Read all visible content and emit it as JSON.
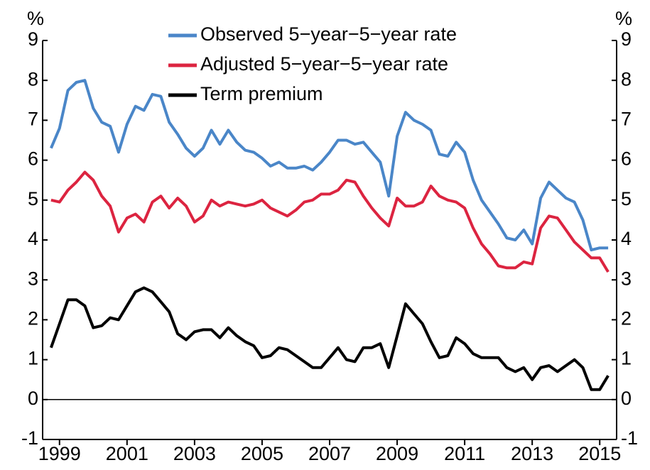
{
  "chart_data": {
    "type": "line",
    "y_label": "%",
    "y2_label": "%",
    "x": [
      1998.75,
      1999,
      1999.25,
      1999.5,
      1999.75,
      2000,
      2000.25,
      2000.5,
      2000.75,
      2001,
      2001.25,
      2001.5,
      2001.75,
      2002,
      2002.25,
      2002.5,
      2002.75,
      2003,
      2003.25,
      2003.5,
      2003.75,
      2004,
      2004.25,
      2004.5,
      2004.75,
      2005,
      2005.25,
      2005.5,
      2005.75,
      2006,
      2006.25,
      2006.5,
      2006.75,
      2007,
      2007.25,
      2007.5,
      2007.75,
      2008,
      2008.25,
      2008.5,
      2008.75,
      2009,
      2009.25,
      2009.5,
      2009.75,
      2010,
      2010.25,
      2010.5,
      2010.75,
      2011,
      2011.25,
      2011.5,
      2011.75,
      2012,
      2012.25,
      2012.5,
      2012.75,
      2013,
      2013.25,
      2013.5,
      2013.75,
      2014,
      2014.25,
      2014.5,
      2014.75,
      2015,
      2015.25
    ],
    "series": [
      {
        "name": "Observed 5−year−5−year rate",
        "color": "#4a86c8",
        "values": [
          6.3,
          6.8,
          7.75,
          7.95,
          8.0,
          7.3,
          6.95,
          6.85,
          6.2,
          6.9,
          7.35,
          7.25,
          7.65,
          7.6,
          6.95,
          6.65,
          6.3,
          6.1,
          6.3,
          6.75,
          6.4,
          6.75,
          6.45,
          6.25,
          6.2,
          6.05,
          5.85,
          5.95,
          5.8,
          5.8,
          5.85,
          5.75,
          5.95,
          6.2,
          6.5,
          6.5,
          6.4,
          6.45,
          6.2,
          5.95,
          5.1,
          6.6,
          7.2,
          7.0,
          6.9,
          6.75,
          6.15,
          6.1,
          6.45,
          6.2,
          5.5,
          5.0,
          4.7,
          4.4,
          4.05,
          4.0,
          4.25,
          3.9,
          5.05,
          5.45,
          5.25,
          5.05,
          4.95,
          4.5,
          3.75,
          3.8,
          3.8
        ]
      },
      {
        "name": "Adjusted 5−year−5−year rate",
        "color": "#dc2440",
        "values": [
          5.0,
          4.95,
          5.25,
          5.45,
          5.7,
          5.5,
          5.1,
          4.85,
          4.2,
          4.55,
          4.65,
          4.45,
          4.95,
          5.1,
          4.8,
          5.05,
          4.85,
          4.45,
          4.6,
          5.0,
          4.85,
          4.95,
          4.9,
          4.85,
          4.9,
          5.0,
          4.8,
          4.7,
          4.6,
          4.75,
          4.95,
          5.0,
          5.15,
          5.15,
          5.25,
          5.5,
          5.45,
          5.1,
          4.8,
          4.55,
          4.35,
          5.05,
          4.85,
          4.85,
          4.95,
          5.35,
          5.1,
          5.0,
          4.95,
          4.8,
          4.3,
          3.9,
          3.65,
          3.35,
          3.3,
          3.3,
          3.45,
          3.4,
          4.3,
          4.6,
          4.55,
          4.25,
          3.95,
          3.75,
          3.55,
          3.55,
          3.2
        ]
      },
      {
        "name": "Term premium",
        "color": "#000000",
        "values": [
          1.3,
          1.9,
          2.5,
          2.5,
          2.35,
          1.8,
          1.85,
          2.05,
          2.0,
          2.35,
          2.7,
          2.8,
          2.7,
          2.45,
          2.2,
          1.65,
          1.5,
          1.7,
          1.75,
          1.75,
          1.55,
          1.8,
          1.6,
          1.45,
          1.35,
          1.05,
          1.1,
          1.3,
          1.25,
          1.1,
          0.95,
          0.8,
          0.8,
          1.05,
          1.3,
          1.0,
          0.95,
          1.3,
          1.3,
          1.4,
          0.8,
          1.6,
          2.4,
          2.15,
          1.9,
          1.45,
          1.05,
          1.1,
          1.55,
          1.4,
          1.15,
          1.05,
          1.05,
          1.05,
          0.8,
          0.7,
          0.8,
          0.5,
          0.8,
          0.85,
          0.7,
          0.85,
          1.0,
          0.8,
          0.25,
          0.25,
          0.6
        ]
      }
    ],
    "xlim": [
      1998.5,
      2015.5
    ],
    "xticks": [
      1999,
      2001,
      2003,
      2005,
      2007,
      2009,
      2011,
      2013,
      2015
    ],
    "ylim": [
      -1,
      9
    ],
    "yticks": [
      -1,
      0,
      1,
      2,
      3,
      4,
      5,
      6,
      7,
      8,
      9
    ],
    "y2lim": [
      -1,
      9
    ],
    "y2ticks": [
      -1,
      0,
      1,
      2,
      3,
      4,
      5,
      6,
      7,
      8,
      9
    ],
    "zero_line": true,
    "legend": "top-left"
  }
}
